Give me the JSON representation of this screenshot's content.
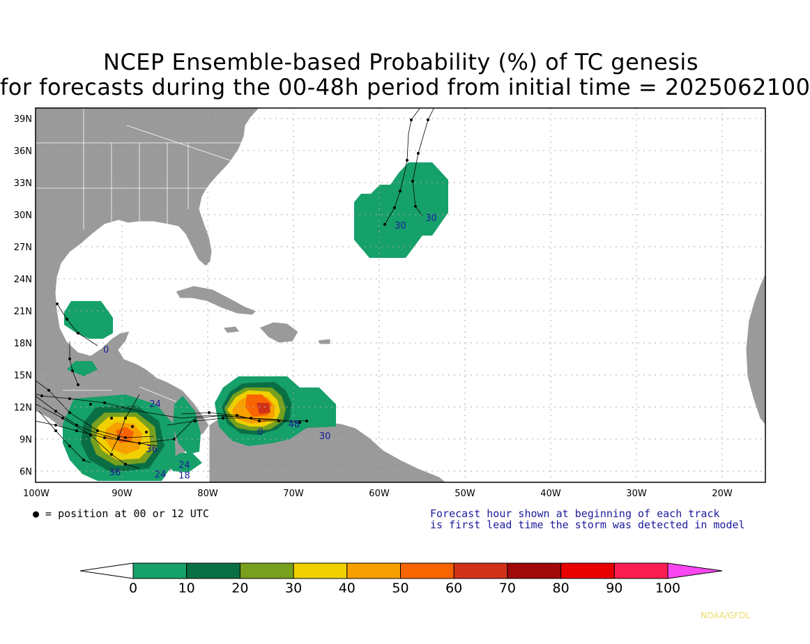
{
  "title": {
    "line1": "NCEP Ensemble-based Probability (%) of TC genesis",
    "line2": "for forecasts during the 00-48h period from initial time = 2025062100"
  },
  "axes": {
    "lat_labels": [
      "39N",
      "36N",
      "33N",
      "30N",
      "27N",
      "24N",
      "21N",
      "18N",
      "15N",
      "12N",
      "9N",
      "6N"
    ],
    "lon_labels": [
      "100W",
      "90W",
      "80W",
      "70W",
      "60W",
      "50W",
      "40W",
      "30W",
      "20W"
    ]
  },
  "legend_note": "● = position at 00 or 12 UTC",
  "forecast_note": {
    "line1": "Forecast hour shown at beginning of each track",
    "line2": "is first lead time the storm was detected in model"
  },
  "colorbar": {
    "ticks": [
      "0",
      "10",
      "20",
      "30",
      "40",
      "50",
      "60",
      "70",
      "80",
      "90",
      "100"
    ],
    "colors": [
      "#16a06a",
      "#0a6e44",
      "#78a01e",
      "#f0d000",
      "#f8a000",
      "#f86400",
      "#d03218",
      "#a00a0a",
      "#e80000",
      "#f81e50",
      "#f846f0"
    ]
  },
  "track_labels": [
    {
      "text": "30",
      "lon": -58.2,
      "lat": 28.7
    },
    {
      "text": "30",
      "lon": -54.6,
      "lat": 29.4
    },
    {
      "text": "0",
      "lon": -92.2,
      "lat": 17.1
    },
    {
      "text": "24",
      "lon": -86.8,
      "lat": 12.0
    },
    {
      "text": "36",
      "lon": -91.5,
      "lat": 5.6
    },
    {
      "text": "24",
      "lon": -86.2,
      "lat": 5.4
    },
    {
      "text": "18",
      "lon": -83.4,
      "lat": 5.3
    },
    {
      "text": "24",
      "lon": -83.4,
      "lat": 6.3
    },
    {
      "text": "36",
      "lon": -87.2,
      "lat": 7.8
    },
    {
      "text": "30",
      "lon": -67.0,
      "lat": 9.0
    },
    {
      "text": "0",
      "lon": -74.2,
      "lat": 9.4
    },
    {
      "text": "48",
      "lon": -70.6,
      "lat": 10.1
    }
  ],
  "credit": "NOAA/GFDL"
}
